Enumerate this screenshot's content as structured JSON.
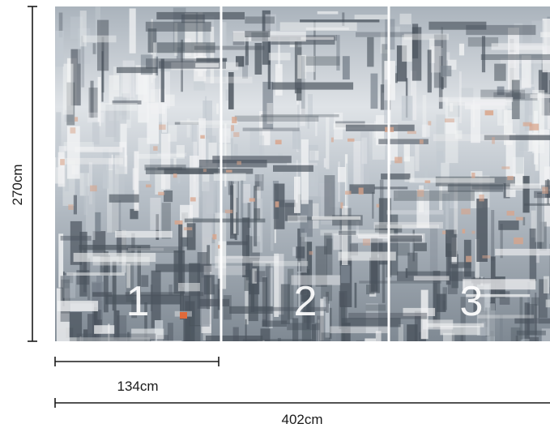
{
  "dimensions": {
    "height": "270cm",
    "panel_width": "134cm",
    "total_width": "402cm"
  },
  "panels": {
    "count": 3,
    "labels": [
      "1",
      "2",
      "3"
    ]
  },
  "colors": {
    "slate_dark": "#4a535d",
    "slate_mid": "#7b8590",
    "grey_light": "#c3cad1",
    "white_wash": "#f2f3f4",
    "peach_accent": "#d9a48a",
    "orange_spot": "#e06a3a",
    "seam": "#ffffff",
    "dimension_line": "#1a1a1a"
  }
}
